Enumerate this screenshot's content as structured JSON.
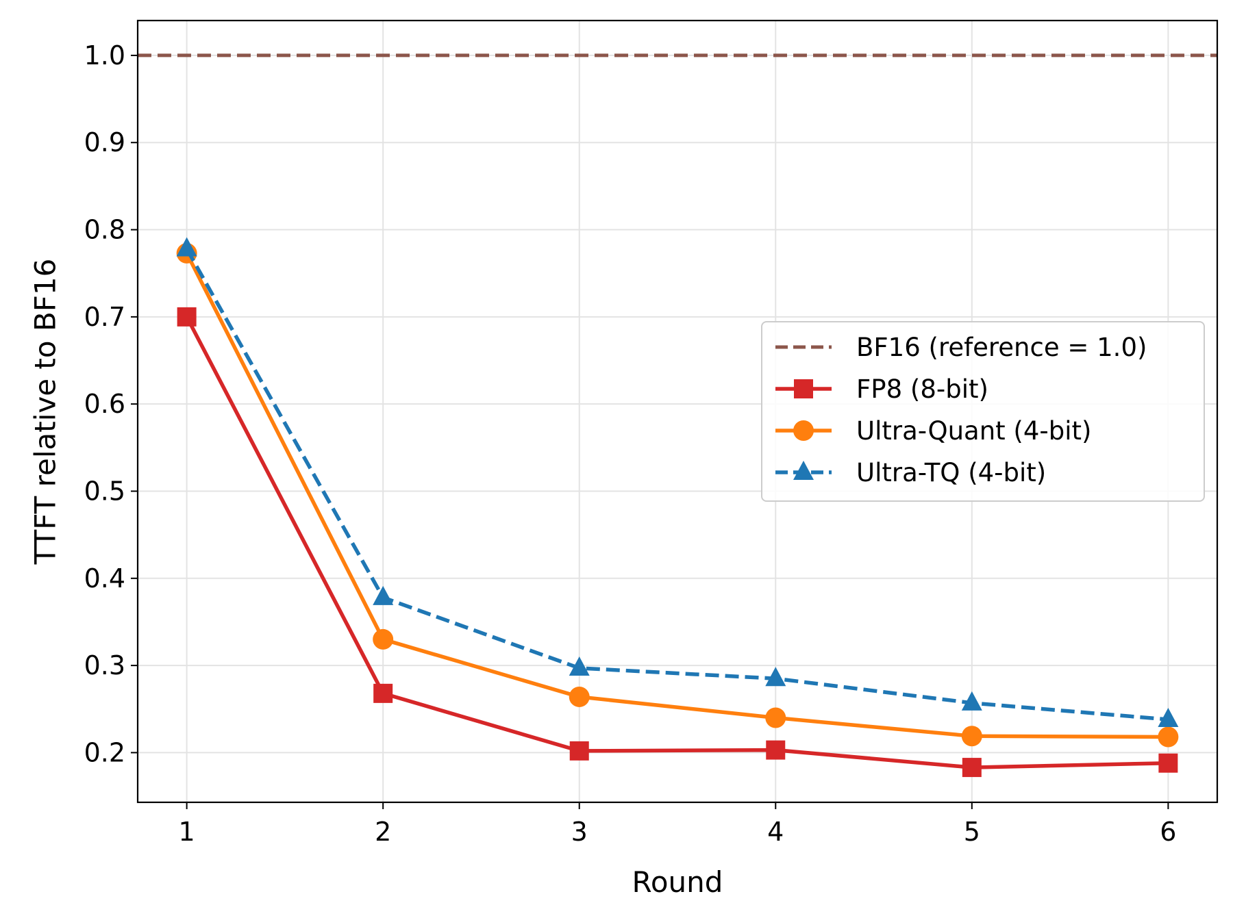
{
  "chart_data": {
    "type": "line",
    "xlabel": "Round",
    "ylabel": "TTFT relative to BF16",
    "x": [
      1,
      2,
      3,
      4,
      5,
      6
    ],
    "xlim": [
      0.75,
      6.25
    ],
    "ylim": [
      0.143,
      1.04
    ],
    "xticks": [
      1,
      2,
      3,
      4,
      5,
      6
    ],
    "yticks": [
      0.2,
      0.3,
      0.4,
      0.5,
      0.6,
      0.7,
      0.8,
      0.9,
      1.0
    ],
    "ytick_labels": [
      "0.2",
      "0.3",
      "0.4",
      "0.5",
      "0.6",
      "0.7",
      "0.8",
      "0.9",
      "1.0"
    ],
    "grid": true,
    "legend_position": "center-right",
    "reference_line": {
      "name": "BF16 (reference = 1.0)",
      "value": 1.0,
      "color": "#8c564b",
      "style": "dashed"
    },
    "series": [
      {
        "name": "FP8 (8-bit)",
        "values": [
          0.7,
          0.268,
          0.202,
          0.203,
          0.183,
          0.188
        ],
        "color": "#d62728",
        "marker": "square",
        "style": "solid"
      },
      {
        "name": "Ultra-Quant (4-bit)",
        "values": [
          0.773,
          0.33,
          0.264,
          0.24,
          0.219,
          0.218
        ],
        "color": "#ff7f0e",
        "marker": "circle",
        "style": "solid"
      },
      {
        "name": "Ultra-TQ (4-bit)",
        "values": [
          0.778,
          0.378,
          0.297,
          0.285,
          0.257,
          0.238
        ],
        "color": "#1f77b4",
        "marker": "triangle",
        "style": "dashed"
      }
    ]
  }
}
